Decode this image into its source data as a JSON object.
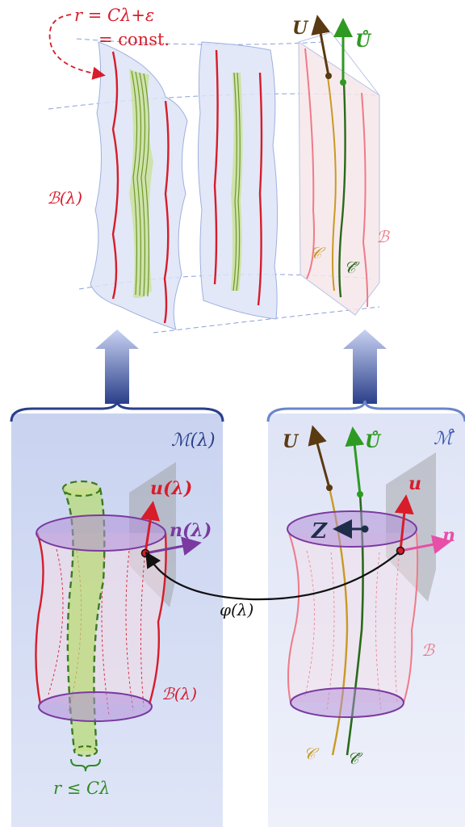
{
  "top": {
    "relation_line1": "r = Cλ+ε",
    "relation_line2": "= const.",
    "body_lambda": "ℬ(λ)",
    "U": "U",
    "U_ring": "Ů",
    "curve_C": "𝒞",
    "curve_C_ring": "𝒞̊",
    "body_B": "ℬ"
  },
  "left": {
    "manifold": "ℳ(λ)",
    "u_vector": "u(λ)",
    "n_vector": "n(λ)",
    "body": "ℬ(λ)",
    "radius_bound": "r ≤ Cλ"
  },
  "right": {
    "manifold": "ℳ̊",
    "U": "U",
    "U_ring": "Ů",
    "u_vector": "u",
    "n_vector": "n",
    "Z": "Z",
    "body": "ℬ",
    "curve_C": "𝒞",
    "curve_C_ring": "𝒞̊"
  },
  "map_label": "φ(λ)",
  "colors": {
    "red": "#d81c2a",
    "green": "#2e8b22",
    "dark_green": "#2a6a1a",
    "brown": "#5a3a10",
    "gold": "#c99a22",
    "purple": "#7a3aa0",
    "magenta": "#e84fa8",
    "navy": "#1e2e4a",
    "blue_panel": "#cdd6f0"
  }
}
